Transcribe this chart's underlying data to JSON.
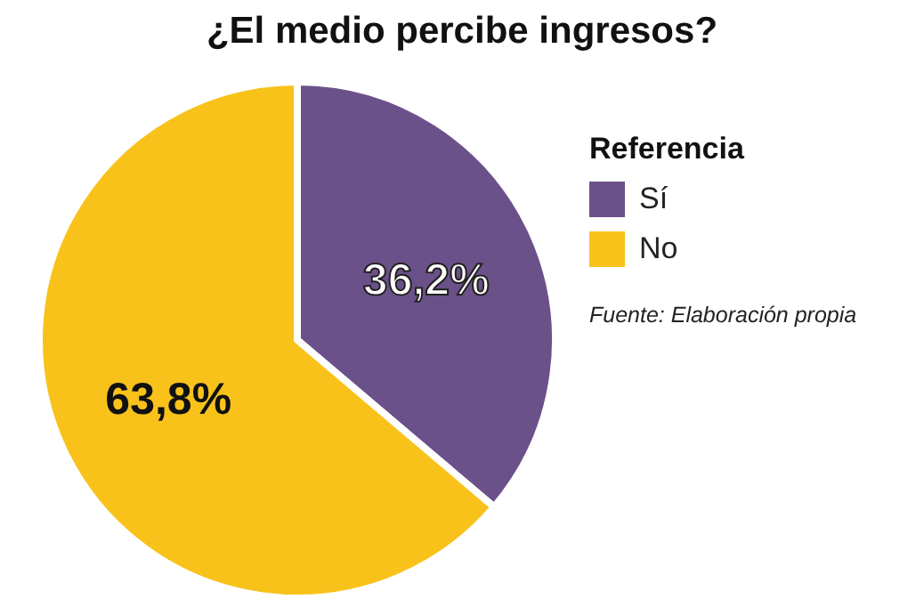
{
  "chart_data": {
    "type": "pie",
    "title": "¿El medio percibe ingresos?",
    "legend_title": "Referencia",
    "categories": [
      "Sí",
      "No"
    ],
    "values": [
      36.2,
      63.8
    ],
    "colors": [
      "#6b5189",
      "#f8c21b"
    ],
    "value_labels": [
      "36,2%",
      "63,8%"
    ],
    "legend": "right",
    "annotations": [
      "Fuente: Elaboración propia"
    ]
  }
}
